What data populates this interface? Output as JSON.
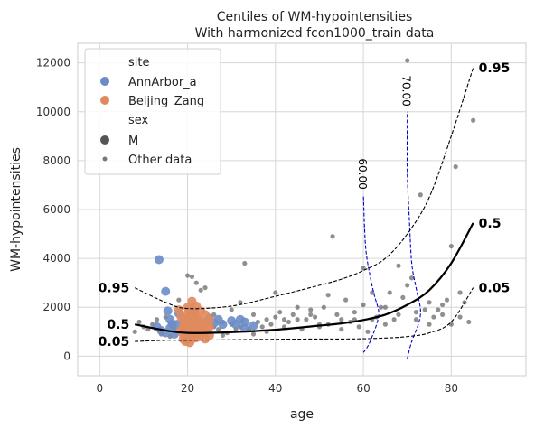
{
  "chart_data": {
    "type": "scatter",
    "title": "Centiles of WM-hypointensities",
    "subtitle": "With harmonized fcon1000_train data",
    "xlabel": "age",
    "ylabel": "WM-hypointensities",
    "xlim": [
      -5,
      97
    ],
    "ylim": [
      -800,
      12800
    ],
    "xticks": [
      "0",
      "20",
      "40",
      "60",
      "80"
    ],
    "yticks": [
      "0",
      "2000",
      "4000",
      "6000",
      "8000",
      "10000",
      "12000"
    ],
    "grid": true,
    "legend_placement": "top-left",
    "legend": {
      "hue_title": "site",
      "hue_items": [
        {
          "label": "AnnArbor_a",
          "color": "#6a8cc7"
        },
        {
          "label": "Beijing_Zang",
          "color": "#e0895e"
        }
      ],
      "style_title": "sex",
      "style_items": [
        {
          "label": "M",
          "marker": "large-dot"
        },
        {
          "label": "Other data",
          "marker": "small-dot"
        }
      ]
    },
    "series": [
      {
        "name": "AnnArbor_a",
        "color": "#6a8cc7",
        "points": [
          [
            13.5,
            3950
          ],
          [
            15,
            2650
          ],
          [
            15.5,
            1850
          ],
          [
            16,
            1500
          ],
          [
            16.5,
            1300
          ],
          [
            13,
            1200
          ],
          [
            14,
            1050
          ],
          [
            15,
            950
          ],
          [
            16,
            1150
          ],
          [
            17,
            900
          ],
          [
            17.5,
            1300
          ],
          [
            19,
            1100
          ],
          [
            20,
            1500
          ],
          [
            21,
            1700
          ],
          [
            22,
            1300
          ],
          [
            24,
            1350
          ],
          [
            25,
            1550
          ],
          [
            26,
            1350
          ],
          [
            27,
            1500
          ],
          [
            28,
            1300
          ],
          [
            30,
            1450
          ],
          [
            31,
            1300
          ],
          [
            32,
            1500
          ],
          [
            33,
            1400
          ],
          [
            33,
            1150
          ],
          [
            35,
            1250
          ],
          [
            18,
            1750
          ],
          [
            23,
            1150
          ]
        ]
      },
      {
        "name": "Beijing_Zang",
        "color": "#e0895e",
        "points": [
          [
            18,
            1900
          ],
          [
            18.5,
            1600
          ],
          [
            19,
            1500
          ],
          [
            19,
            1200
          ],
          [
            19,
            900
          ],
          [
            19.5,
            600
          ],
          [
            19.5,
            1450
          ],
          [
            20,
            2000
          ],
          [
            20,
            1750
          ],
          [
            20,
            1350
          ],
          [
            20,
            1100
          ],
          [
            20,
            800
          ],
          [
            20.5,
            1650
          ],
          [
            20.5,
            1250
          ],
          [
            20.5,
            550
          ],
          [
            21,
            2250
          ],
          [
            21,
            1900
          ],
          [
            21,
            1550
          ],
          [
            21,
            1000
          ],
          [
            21,
            700
          ],
          [
            21.5,
            1750
          ],
          [
            21.5,
            1350
          ],
          [
            21.5,
            900
          ],
          [
            22,
            2050
          ],
          [
            22,
            1600
          ],
          [
            22,
            1200
          ],
          [
            22,
            750
          ],
          [
            22.5,
            1500
          ],
          [
            22.5,
            1000
          ],
          [
            23,
            1850
          ],
          [
            23,
            1400
          ],
          [
            23,
            850
          ],
          [
            23.5,
            1300
          ],
          [
            24,
            1700
          ],
          [
            24,
            1100
          ],
          [
            24,
            700
          ],
          [
            25,
            1500
          ],
          [
            25,
            1200
          ],
          [
            25,
            850
          ],
          [
            18.5,
            1050
          ],
          [
            19.5,
            1300
          ],
          [
            20.5,
            950
          ],
          [
            21.5,
            1150
          ],
          [
            22.5,
            1300
          ],
          [
            23.5,
            950
          ],
          [
            24.5,
            1250
          ],
          [
            19,
            700
          ],
          [
            20,
            1250
          ],
          [
            21,
            1300
          ],
          [
            22,
            950
          ]
        ]
      },
      {
        "name": "Other data",
        "color": "#555555",
        "points": [
          [
            8,
            1000
          ],
          [
            9,
            1400
          ],
          [
            10,
            1200
          ],
          [
            11,
            1100
          ],
          [
            12,
            1300
          ],
          [
            13,
            1500
          ],
          [
            14,
            900
          ],
          [
            15,
            1600
          ],
          [
            16,
            800
          ],
          [
            17,
            1100
          ],
          [
            18,
            2300
          ],
          [
            19,
            1200
          ],
          [
            20,
            3300
          ],
          [
            21,
            3250
          ],
          [
            22,
            3000
          ],
          [
            23,
            2700
          ],
          [
            24,
            900
          ],
          [
            25,
            1000
          ],
          [
            26,
            1200
          ],
          [
            27,
            1100
          ],
          [
            28,
            850
          ],
          [
            29,
            950
          ],
          [
            30,
            1300
          ],
          [
            31,
            1100
          ],
          [
            32,
            1200
          ],
          [
            33,
            3800
          ],
          [
            34,
            1100
          ],
          [
            35,
            900
          ],
          [
            36,
            1400
          ],
          [
            37,
            1200
          ],
          [
            38,
            1000
          ],
          [
            39,
            1300
          ],
          [
            40,
            1600
          ],
          [
            41,
            1800
          ],
          [
            42,
            1500
          ],
          [
            43,
            1400
          ],
          [
            44,
            1700
          ],
          [
            45,
            2000
          ],
          [
            46,
            1100
          ],
          [
            47,
            1500
          ],
          [
            48,
            1700
          ],
          [
            49,
            1600
          ],
          [
            50,
            1200
          ],
          [
            51,
            2000
          ],
          [
            52,
            1300
          ],
          [
            53,
            4900
          ],
          [
            54,
            1700
          ],
          [
            55,
            1500
          ],
          [
            56,
            2300
          ],
          [
            57,
            1400
          ],
          [
            58,
            1500
          ],
          [
            59,
            1200
          ],
          [
            60,
            3600
          ],
          [
            61,
            1000
          ],
          [
            62,
            2600
          ],
          [
            63,
            1600
          ],
          [
            64,
            2000
          ],
          [
            65,
            1300
          ],
          [
            66,
            2600
          ],
          [
            67,
            1500
          ],
          [
            68,
            3700
          ],
          [
            69,
            2400
          ],
          [
            70,
            12100
          ],
          [
            71,
            3200
          ],
          [
            72,
            1800
          ],
          [
            73,
            6600
          ],
          [
            74,
            1900
          ],
          [
            75,
            2200
          ],
          [
            76,
            1600
          ],
          [
            77,
            1900
          ],
          [
            78,
            2100
          ],
          [
            79,
            2300
          ],
          [
            80,
            4500
          ],
          [
            81,
            7750
          ],
          [
            82,
            2600
          ],
          [
            83,
            2200
          ],
          [
            85,
            9650
          ],
          [
            22,
            1900
          ],
          [
            24,
            2800
          ],
          [
            26,
            1700
          ],
          [
            28,
            1400
          ],
          [
            30,
            1900
          ],
          [
            32,
            2200
          ],
          [
            35,
            1700
          ],
          [
            38,
            1500
          ],
          [
            40,
            2600
          ],
          [
            42,
            1200
          ],
          [
            45,
            1500
          ],
          [
            48,
            1900
          ],
          [
            50,
            1300
          ],
          [
            52,
            2500
          ],
          [
            55,
            1100
          ],
          [
            58,
            1800
          ],
          [
            60,
            2100
          ],
          [
            62,
            1500
          ],
          [
            65,
            2000
          ],
          [
            68,
            1700
          ],
          [
            70,
            2900
          ],
          [
            72,
            1500
          ],
          [
            75,
            1300
          ],
          [
            78,
            1700
          ],
          [
            80,
            1300
          ],
          [
            82,
            1600
          ],
          [
            84,
            1400
          ]
        ]
      }
    ],
    "centile_curves": [
      {
        "label": "0.95",
        "style": "dashed",
        "color": "#000000",
        "points": [
          [
            8,
            2800
          ],
          [
            15,
            2200
          ],
          [
            20,
            1950
          ],
          [
            30,
            2050
          ],
          [
            40,
            2450
          ],
          [
            50,
            2900
          ],
          [
            55,
            3150
          ],
          [
            60,
            3500
          ],
          [
            65,
            4000
          ],
          [
            70,
            5000
          ],
          [
            75,
            6500
          ],
          [
            80,
            9000
          ],
          [
            85,
            11800
          ]
        ]
      },
      {
        "label": "0.5",
        "style": "solid",
        "color": "#000000",
        "points": [
          [
            8,
            1300
          ],
          [
            15,
            1050
          ],
          [
            20,
            950
          ],
          [
            30,
            980
          ],
          [
            40,
            1080
          ],
          [
            50,
            1250
          ],
          [
            55,
            1340
          ],
          [
            60,
            1480
          ],
          [
            65,
            1700
          ],
          [
            70,
            2100
          ],
          [
            75,
            2700
          ],
          [
            80,
            3800
          ],
          [
            85,
            5450
          ]
        ]
      },
      {
        "label": "0.05",
        "style": "dashed",
        "color": "#000000",
        "points": [
          [
            8,
            600
          ],
          [
            15,
            650
          ],
          [
            20,
            650
          ],
          [
            30,
            670
          ],
          [
            40,
            690
          ],
          [
            50,
            700
          ],
          [
            55,
            700
          ],
          [
            60,
            710
          ],
          [
            65,
            740
          ],
          [
            70,
            800
          ],
          [
            75,
            950
          ],
          [
            80,
            1400
          ],
          [
            85,
            2800
          ]
        ]
      }
    ],
    "density_curves": [
      {
        "label": "60.00",
        "x_center": 60,
        "color": "#0000cc",
        "points": [
          [
            60,
            150
          ],
          [
            61,
            400
          ],
          [
            62,
            800
          ],
          [
            63,
            1300
          ],
          [
            63.5,
            1800
          ],
          [
            62.5,
            2500
          ],
          [
            61.5,
            3300
          ],
          [
            60.5,
            4500
          ],
          [
            60,
            6600
          ]
        ]
      },
      {
        "label": "70.00",
        "x_center": 70,
        "color": "#0000cc",
        "points": [
          [
            70,
            -100
          ],
          [
            71,
            600
          ],
          [
            72.5,
            1300
          ],
          [
            73,
            1900
          ],
          [
            72,
            2800
          ],
          [
            71,
            3800
          ],
          [
            70.5,
            5500
          ],
          [
            70,
            7500
          ],
          [
            70,
            10000
          ]
        ]
      }
    ]
  }
}
